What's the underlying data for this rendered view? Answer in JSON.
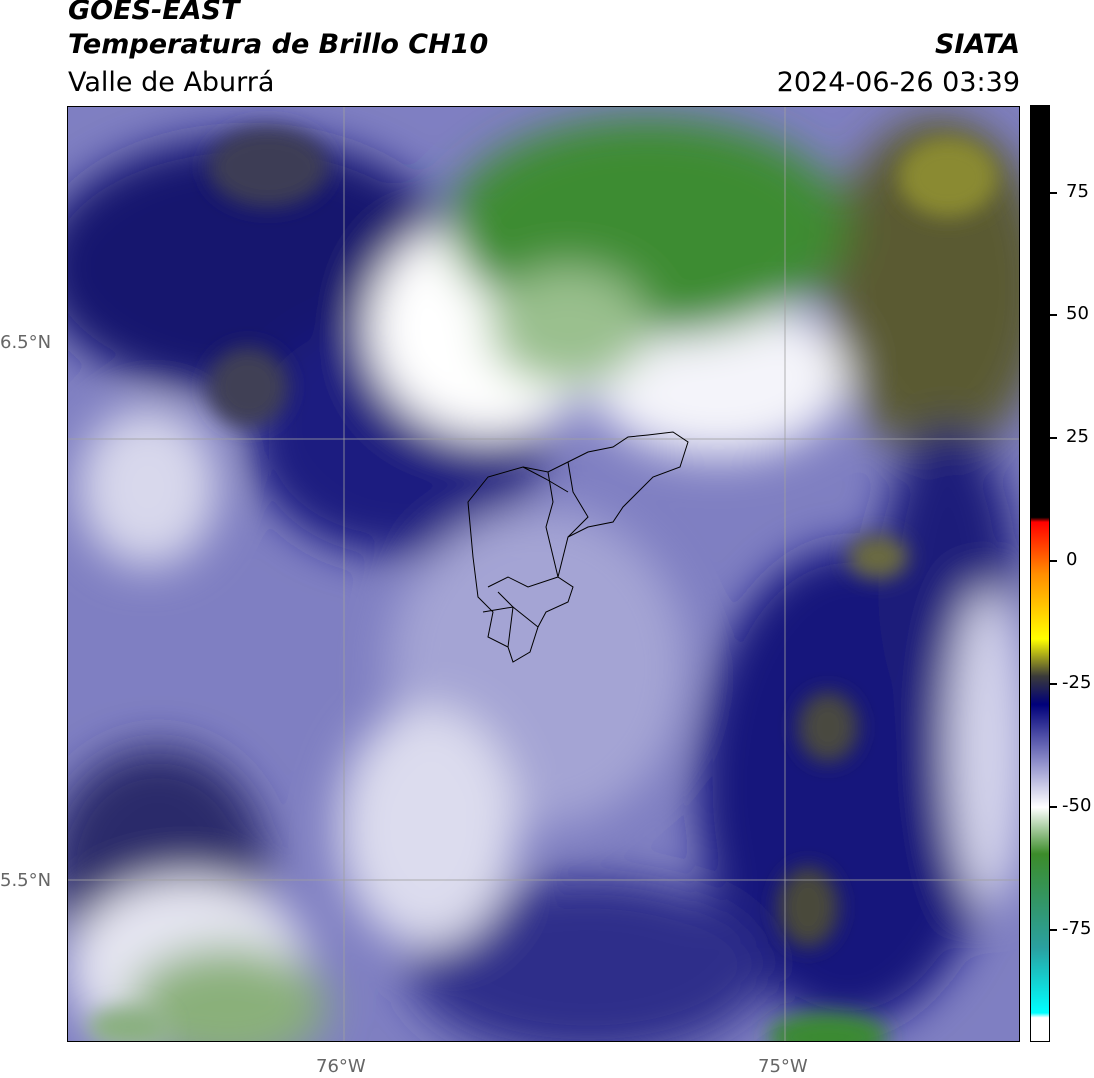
{
  "header": {
    "line1": "GOES-EAST",
    "line2": "Temperatura de Brillo CH10",
    "line3": "Valle de Aburrá",
    "brand": "SIATA",
    "timestamp": "2024-06-26 03:39"
  },
  "map": {
    "lat_labels": [
      "6.5°N",
      "5.5°N"
    ],
    "lon_labels": [
      "76°W",
      "75°W"
    ],
    "gridline_color": "#a0a0a0",
    "boundary_color": "#000000"
  },
  "colorbar": {
    "tick_labels": [
      "75",
      "50",
      "25",
      "0",
      "-25",
      "-50",
      "-75"
    ],
    "stops": [
      {
        "color": "#000000"
      },
      {
        "color": "#000000"
      },
      {
        "color": "#ff0000"
      },
      {
        "color": "#ff8c00"
      },
      {
        "color": "#ffff00"
      },
      {
        "color": "#3a3a3a"
      },
      {
        "color": "#00007a"
      },
      {
        "color": "#8a8ac8"
      },
      {
        "color": "#ffffff"
      },
      {
        "color": "#3c8c2a"
      },
      {
        "color": "#2aa0a0"
      },
      {
        "color": "#00ffff"
      },
      {
        "color": "#ffffff"
      }
    ]
  }
}
